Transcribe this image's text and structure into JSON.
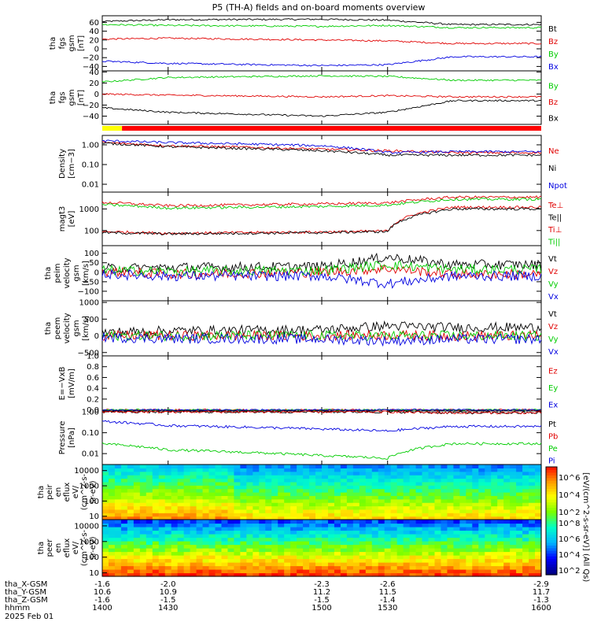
{
  "title": "P5 (TH-A) fields and on-board moments overview",
  "panels": [
    {
      "id": "fgs-gsm",
      "ylabel": [
        "tha",
        "fgs",
        "gsm",
        "[nT]"
      ],
      "ylim": [
        -50,
        75
      ],
      "yscale": "linear",
      "ticks": [
        {
          "v": 60,
          "l": "60"
        },
        {
          "v": 40,
          "l": "40"
        },
        {
          "v": 20,
          "l": "20"
        },
        {
          "v": 0,
          "l": "0"
        },
        {
          "v": -20,
          "l": "−20"
        },
        {
          "v": -40,
          "l": "−40"
        }
      ],
      "legend": [
        {
          "name": "Bt",
          "color": "#000000"
        },
        {
          "name": "Bz",
          "color": "#e00000"
        },
        {
          "name": "By",
          "color": "#00cc00"
        },
        {
          "name": "Bx",
          "color": "#0000e0"
        }
      ]
    },
    {
      "id": "fgs-gse",
      "ylabel": [
        "tha",
        "fgs",
        "gsm",
        "[nT]"
      ],
      "ylim": [
        -55,
        42
      ],
      "yscale": "linear",
      "ticks": [
        {
          "v": 40,
          "l": "40"
        },
        {
          "v": 20,
          "l": "20"
        },
        {
          "v": 0,
          "l": "0"
        },
        {
          "v": -20,
          "l": "−20"
        },
        {
          "v": -40,
          "l": "−40"
        }
      ],
      "legend": [
        {
          "name": "By",
          "color": "#00cc00"
        },
        {
          "name": "Bz",
          "color": "#e00000"
        },
        {
          "name": "Bx",
          "color": "#000000"
        }
      ]
    },
    {
      "id": "density",
      "ylabel": [
        "Density",
        "[cm−3]"
      ],
      "ylim": [
        0.004,
        3
      ],
      "yscale": "log",
      "ticks": [
        {
          "v": 1,
          "l": "1.00"
        },
        {
          "v": 0.1,
          "l": "0.10"
        },
        {
          "v": 0.01,
          "l": "0.01"
        }
      ],
      "legend": [
        {
          "name": "Ne",
          "color": "#e00000"
        },
        {
          "name": "Ni",
          "color": "#000000"
        },
        {
          "name": "Npot",
          "color": "#0000e0"
        }
      ]
    },
    {
      "id": "temperature",
      "ylabel": [
        "magt3",
        "[eV]"
      ],
      "ylim": [
        20,
        6000
      ],
      "yscale": "log",
      "ticks": [
        {
          "v": 1000,
          "l": "1000"
        },
        {
          "v": 100,
          "l": "100"
        }
      ],
      "legend": [
        {
          "name": "Te⊥",
          "color": "#e00000"
        },
        {
          "name": "Te||",
          "color": "#000000"
        },
        {
          "name": "Ti⊥",
          "color": "#e00000"
        },
        {
          "name": "Ti||",
          "color": "#00cc00"
        }
      ]
    },
    {
      "id": "peim-velocity",
      "ylabel": [
        "tha",
        "peim",
        "velocity",
        "gsm",
        "[km/s]"
      ],
      "ylim": [
        -150,
        140
      ],
      "yscale": "linear",
      "ticks": [
        {
          "v": 100,
          "l": "100"
        },
        {
          "v": 50,
          "l": "50"
        },
        {
          "v": 0,
          "l": "0"
        },
        {
          "v": -50,
          "l": "−50"
        },
        {
          "v": -100,
          "l": "−100"
        }
      ],
      "legend": [
        {
          "name": "Vt",
          "color": "#000000"
        },
        {
          "name": "Vz",
          "color": "#e00000"
        },
        {
          "name": "Vy",
          "color": "#00cc00"
        },
        {
          "name": "Vx",
          "color": "#0000e0"
        }
      ]
    },
    {
      "id": "peem-velocity",
      "ylabel": [
        "tha",
        "peem",
        "velocity",
        "gsm",
        "[km/s]"
      ],
      "ylim": [
        -600,
        1050
      ],
      "yscale": "linear",
      "ticks": [
        {
          "v": 1000,
          "l": "1000"
        },
        {
          "v": 500,
          "l": "500"
        },
        {
          "v": 0,
          "l": "0"
        },
        {
          "v": -500,
          "l": "−500"
        }
      ],
      "legend": [
        {
          "name": "Vt",
          "color": "#000000"
        },
        {
          "name": "Vz",
          "color": "#e00000"
        },
        {
          "name": "Vy",
          "color": "#00cc00"
        },
        {
          "name": "Vx",
          "color": "#0000e0"
        }
      ]
    },
    {
      "id": "efield",
      "ylabel": [
        "E=−VxB",
        "[mV/m]"
      ],
      "ylim": [
        -0.02,
        1.0
      ],
      "yscale": "linear",
      "ticks": [
        {
          "v": 1.0,
          "l": "1.0"
        },
        {
          "v": 0.8,
          "l": "0.8"
        },
        {
          "v": 0.6,
          "l": "0.6"
        },
        {
          "v": 0.4,
          "l": "0.4"
        },
        {
          "v": 0.2,
          "l": "0.2"
        },
        {
          "v": 0.0,
          "l": "0.0"
        }
      ],
      "legend": [
        {
          "name": "Ez",
          "color": "#e00000"
        },
        {
          "name": "Ey",
          "color": "#00cc00"
        },
        {
          "name": "Ex",
          "color": "#0000e0"
        }
      ]
    },
    {
      "id": "pressure",
      "ylabel": [
        "Pressure",
        "[nPa]"
      ],
      "ylim": [
        0.003,
        1.1
      ],
      "yscale": "log",
      "ticks": [
        {
          "v": 1.0,
          "l": "1.00"
        },
        {
          "v": 0.1,
          "l": "0.10"
        },
        {
          "v": 0.01,
          "l": "0.01"
        }
      ],
      "legend": [
        {
          "name": "Pt",
          "color": "#000000"
        },
        {
          "name": "Pb",
          "color": "#e00000"
        },
        {
          "name": "Pe",
          "color": "#00cc00"
        },
        {
          "name": "Pi",
          "color": "#0000e0"
        }
      ]
    }
  ],
  "spectra": [
    {
      "id": "peir-eflux",
      "ylabel": [
        "tha",
        "peir",
        "en",
        "eflux",
        "eV/",
        "(cm^2-s-",
        "sr-eV)"
      ],
      "ylim": [
        6,
        25000
      ],
      "ticks": [
        {
          "v": 10000,
          "l": "10000"
        },
        {
          "v": 1000,
          "l": "1000"
        },
        {
          "v": 100,
          "l": "100"
        },
        {
          "v": 10,
          "l": "10"
        }
      ]
    },
    {
      "id": "peer-eflux",
      "ylabel": [
        "tha",
        "peer",
        "en",
        "eflux",
        "eV/",
        "(cm^2-s-",
        "sr-eV)"
      ],
      "ylim": [
        6,
        25000
      ],
      "ticks": [
        {
          "v": 10000,
          "l": "10000"
        },
        {
          "v": 1000,
          "l": "1000"
        },
        {
          "v": 100,
          "l": "100"
        },
        {
          "v": 10,
          "l": "10"
        }
      ]
    }
  ],
  "colorbar": {
    "label": "[eV/(cm^2-s-sr-eV)] (All Qs)",
    "ticks_upper": [
      "10^6",
      "10^4",
      "10^2"
    ],
    "ticks_lower": [
      "10^8",
      "10^6",
      "10^4",
      "10^2"
    ]
  },
  "x_axis": {
    "range_min": [
      1400,
      1600
    ],
    "ticks": [
      {
        "hhmm": "1400",
        "min": 1400,
        "x": "-1.6",
        "y": "10.6",
        "z": "-1.6"
      },
      {
        "hhmm": "1430",
        "min": 1430,
        "x": "-2.0",
        "y": "10.9",
        "z": "-1.5"
      },
      {
        "hhmm": "1500",
        "min": 1500,
        "x": "-2.3",
        "y": "11.2",
        "z": "-1.5"
      },
      {
        "hhmm": "1530",
        "min": 1530,
        "x": "-2.6",
        "y": "11.5",
        "z": "-1.4"
      },
      {
        "hhmm": "1600",
        "min": 1600,
        "x": "-2.9",
        "y": "11.7",
        "z": "-1.3"
      }
    ],
    "row_labels": [
      "tha_X-GSM",
      "tha_Y-GSM",
      "tha_Z-GSM",
      "hhmm"
    ],
    "date": "2025 Feb 01"
  },
  "mode_bar": {
    "segments": [
      {
        "from": 1400,
        "to": 1409,
        "color": "#ffff00"
      },
      {
        "from": 1409,
        "to": 1600,
        "color": "#ff0000"
      }
    ]
  },
  "chart_data": [
    {
      "type": "line",
      "title": "P5 (TH-A) fields and on-board moments overview",
      "ylabel": "tha fgs gsm [nT]",
      "x": [
        1400,
        1430,
        1500,
        1530,
        1560
      ],
      "series": [
        {
          "name": "Bt",
          "values": [
            62,
            66,
            67,
            65,
            55
          ]
        },
        {
          "name": "Bz",
          "values": [
            22,
            24,
            20,
            18,
            12
          ]
        },
        {
          "name": "By",
          "values": [
            55,
            53,
            51,
            53,
            48
          ]
        },
        {
          "name": "Bx",
          "values": [
            -28,
            -33,
            -38,
            -36,
            -18
          ]
        }
      ],
      "ylim": [
        -50,
        75
      ]
    },
    {
      "type": "line",
      "ylabel": "tha fgs gsm [nT]",
      "x": [
        1400,
        1430,
        1500,
        1530,
        1560
      ],
      "series": [
        {
          "name": "By",
          "values": [
            22,
            30,
            33,
            32,
            25
          ]
        },
        {
          "name": "Bz",
          "values": [
            0,
            -2,
            -5,
            -3,
            -5
          ]
        },
        {
          "name": "Bx",
          "values": [
            -25,
            -33,
            -40,
            -33,
            -12
          ]
        }
      ],
      "ylim": [
        -55,
        42
      ]
    },
    {
      "type": "line",
      "ylabel": "Density [cm−3]",
      "x": [
        1400,
        1430,
        1500,
        1530,
        1560
      ],
      "series": [
        {
          "name": "Ne",
          "values": [
            1.3,
            0.9,
            0.6,
            0.5,
            0.4
          ]
        },
        {
          "name": "Ni",
          "values": [
            1.2,
            0.8,
            0.5,
            0.3,
            0.3
          ]
        },
        {
          "name": "Npot",
          "values": [
            1.6,
            1.3,
            0.9,
            0.4,
            0.45
          ]
        }
      ],
      "ylim": [
        0.004,
        3
      ]
    },
    {
      "type": "line",
      "ylabel": "magt3 [eV]",
      "x": [
        1400,
        1430,
        1500,
        1530,
        1560
      ],
      "series": [
        {
          "name": "Te⊥",
          "values": [
            90,
            75,
            85,
            95,
            1200
          ]
        },
        {
          "name": "Te||",
          "values": [
            80,
            70,
            80,
            90,
            1000
          ]
        },
        {
          "name": "Ti⊥",
          "values": [
            2000,
            1400,
            1700,
            1900,
            3500
          ]
        },
        {
          "name": "Ti||",
          "values": [
            1600,
            1100,
            1300,
            1500,
            2800
          ]
        }
      ],
      "ylim": [
        20,
        6000
      ]
    },
    {
      "type": "line",
      "ylabel": "tha peim velocity gsm [km/s]",
      "x": [
        1400,
        1430,
        1500,
        1530,
        1560
      ],
      "series": [
        {
          "name": "Vt",
          "values": [
            20,
            25,
            30,
            80,
            40
          ]
        },
        {
          "name": "Vz",
          "values": [
            5,
            -10,
            0,
            20,
            -10
          ]
        },
        {
          "name": "Vy",
          "values": [
            10,
            5,
            10,
            40,
            15
          ]
        },
        {
          "name": "Vx",
          "values": [
            -10,
            -20,
            -20,
            -60,
            -20
          ]
        }
      ],
      "ylim": [
        -150,
        140
      ]
    },
    {
      "type": "line",
      "ylabel": "tha peem velocity gsm [km/s]",
      "x": [
        1400,
        1430,
        1500,
        1530,
        1560
      ],
      "series": [
        {
          "name": "Vt",
          "values": [
            100,
            150,
            180,
            300,
            250
          ]
        },
        {
          "name": "Vz",
          "values": [
            0,
            10,
            0,
            20,
            0
          ]
        },
        {
          "name": "Vy",
          "values": [
            0,
            0,
            10,
            0,
            0
          ]
        },
        {
          "name": "Vx",
          "values": [
            -50,
            -80,
            -100,
            -150,
            -100
          ]
        }
      ],
      "ylim": [
        -600,
        1050
      ]
    },
    {
      "type": "line",
      "ylabel": "E=−VxB [mV/m]",
      "x": [
        1400,
        1430,
        1500,
        1530,
        1560
      ],
      "series": [
        {
          "name": "Ez",
          "values": [
            0,
            0,
            0,
            0,
            0
          ]
        },
        {
          "name": "Ey",
          "values": [
            0,
            0,
            0,
            0,
            0
          ]
        },
        {
          "name": "Ex",
          "values": [
            0,
            0,
            0,
            0,
            0
          ]
        }
      ],
      "ylim": [
        -0.02,
        1.0
      ]
    },
    {
      "type": "line",
      "ylabel": "Pressure [nPa]",
      "x": [
        1400,
        1430,
        1500,
        1530,
        1560
      ],
      "series": [
        {
          "name": "Pt",
          "values": [
            1.0,
            1.0,
            1.0,
            1.0,
            0.9
          ]
        },
        {
          "name": "Pb",
          "values": [
            1.0,
            1.0,
            1.0,
            1.0,
            0.9
          ]
        },
        {
          "name": "Pe",
          "values": [
            0.03,
            0.015,
            0.008,
            0.006,
            0.03
          ]
        },
        {
          "name": "Pi",
          "values": [
            0.35,
            0.22,
            0.15,
            0.12,
            0.2
          ]
        }
      ],
      "ylim": [
        0.003,
        1.1
      ]
    }
  ]
}
